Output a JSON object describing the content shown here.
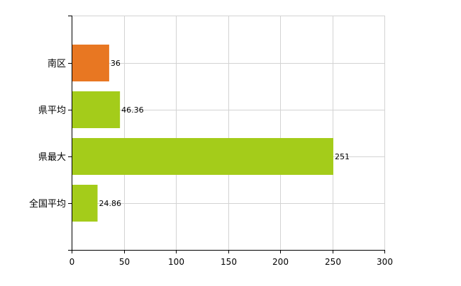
{
  "chart_data": {
    "type": "bar",
    "orientation": "horizontal",
    "categories": [
      "南区",
      "県平均",
      "県最大",
      "全国平均"
    ],
    "values": [
      36,
      46.36,
      251,
      24.86
    ],
    "data_labels": [
      "36",
      "46.36",
      "251",
      "24.86"
    ],
    "bar_colors": [
      "#e87722",
      "#a4cc1a",
      "#a4cc1a",
      "#a4cc1a"
    ],
    "xlim": [
      0,
      300
    ],
    "x_ticks": [
      0,
      50,
      100,
      150,
      200,
      250,
      300
    ],
    "grid": true,
    "legend": "none"
  },
  "colors": {
    "highlight": "#e87722",
    "default": "#a4cc1a",
    "grid": "#d3d3d3",
    "axis": "#000000"
  }
}
